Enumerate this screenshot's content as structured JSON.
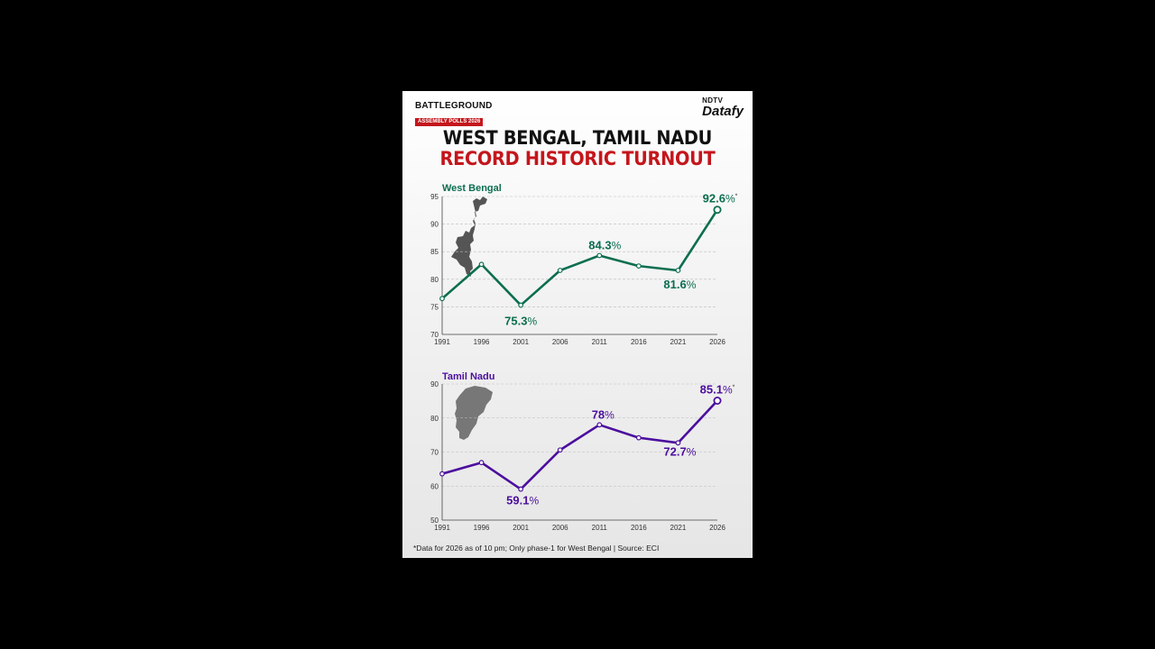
{
  "brand": {
    "name": "BATTLEGROUND",
    "subtitle": "ASSEMBLY POLLS 2026"
  },
  "logo": {
    "top": "NDTV",
    "main": "Datafy"
  },
  "title": {
    "line1": "WEST BENGAL, TAMIL NADU",
    "line2": "RECORD HISTORIC TURNOUT"
  },
  "footnote": "*Data for 2026 as of 10 pm; Only phase-1 for West Bengal | Source: ECI",
  "colors": {
    "west_bengal": "#0b6e4f",
    "tamil_nadu": "#4b0e9e",
    "accent_red": "#c4161c"
  },
  "icons": [
    "west-bengal-map-icon",
    "tamil-nadu-map-icon"
  ],
  "chart_data": [
    {
      "type": "line",
      "title": "West Bengal",
      "x": [
        "1991",
        "1996",
        "2001",
        "2006",
        "2011",
        "2016",
        "2021",
        "2026"
      ],
      "values": [
        76.5,
        82.7,
        75.3,
        81.6,
        84.3,
        82.4,
        81.6,
        92.6
      ],
      "ylim": [
        70,
        95
      ],
      "yticks": [
        70,
        75,
        80,
        85,
        90,
        95
      ],
      "grid": true,
      "labels": [
        {
          "index": 2,
          "text": "75.3%"
        },
        {
          "index": 4,
          "text": "84.3%"
        },
        {
          "index": 6,
          "text": "81.6%"
        },
        {
          "index": 7,
          "text": "92.6%*"
        }
      ]
    },
    {
      "type": "line",
      "title": "Tamil Nadu",
      "x": [
        "1991",
        "1996",
        "2001",
        "2006",
        "2011",
        "2016",
        "2021",
        "2026"
      ],
      "values": [
        63.6,
        66.9,
        59.1,
        70.6,
        78.0,
        74.2,
        72.7,
        85.1
      ],
      "ylim": [
        50,
        90
      ],
      "yticks": [
        50,
        60,
        70,
        80,
        90
      ],
      "grid": true,
      "labels": [
        {
          "index": 2,
          "text": "59.1%"
        },
        {
          "index": 4,
          "text": "78%"
        },
        {
          "index": 6,
          "text": "72.7%"
        },
        {
          "index": 7,
          "text": "85.1%*"
        }
      ]
    }
  ]
}
